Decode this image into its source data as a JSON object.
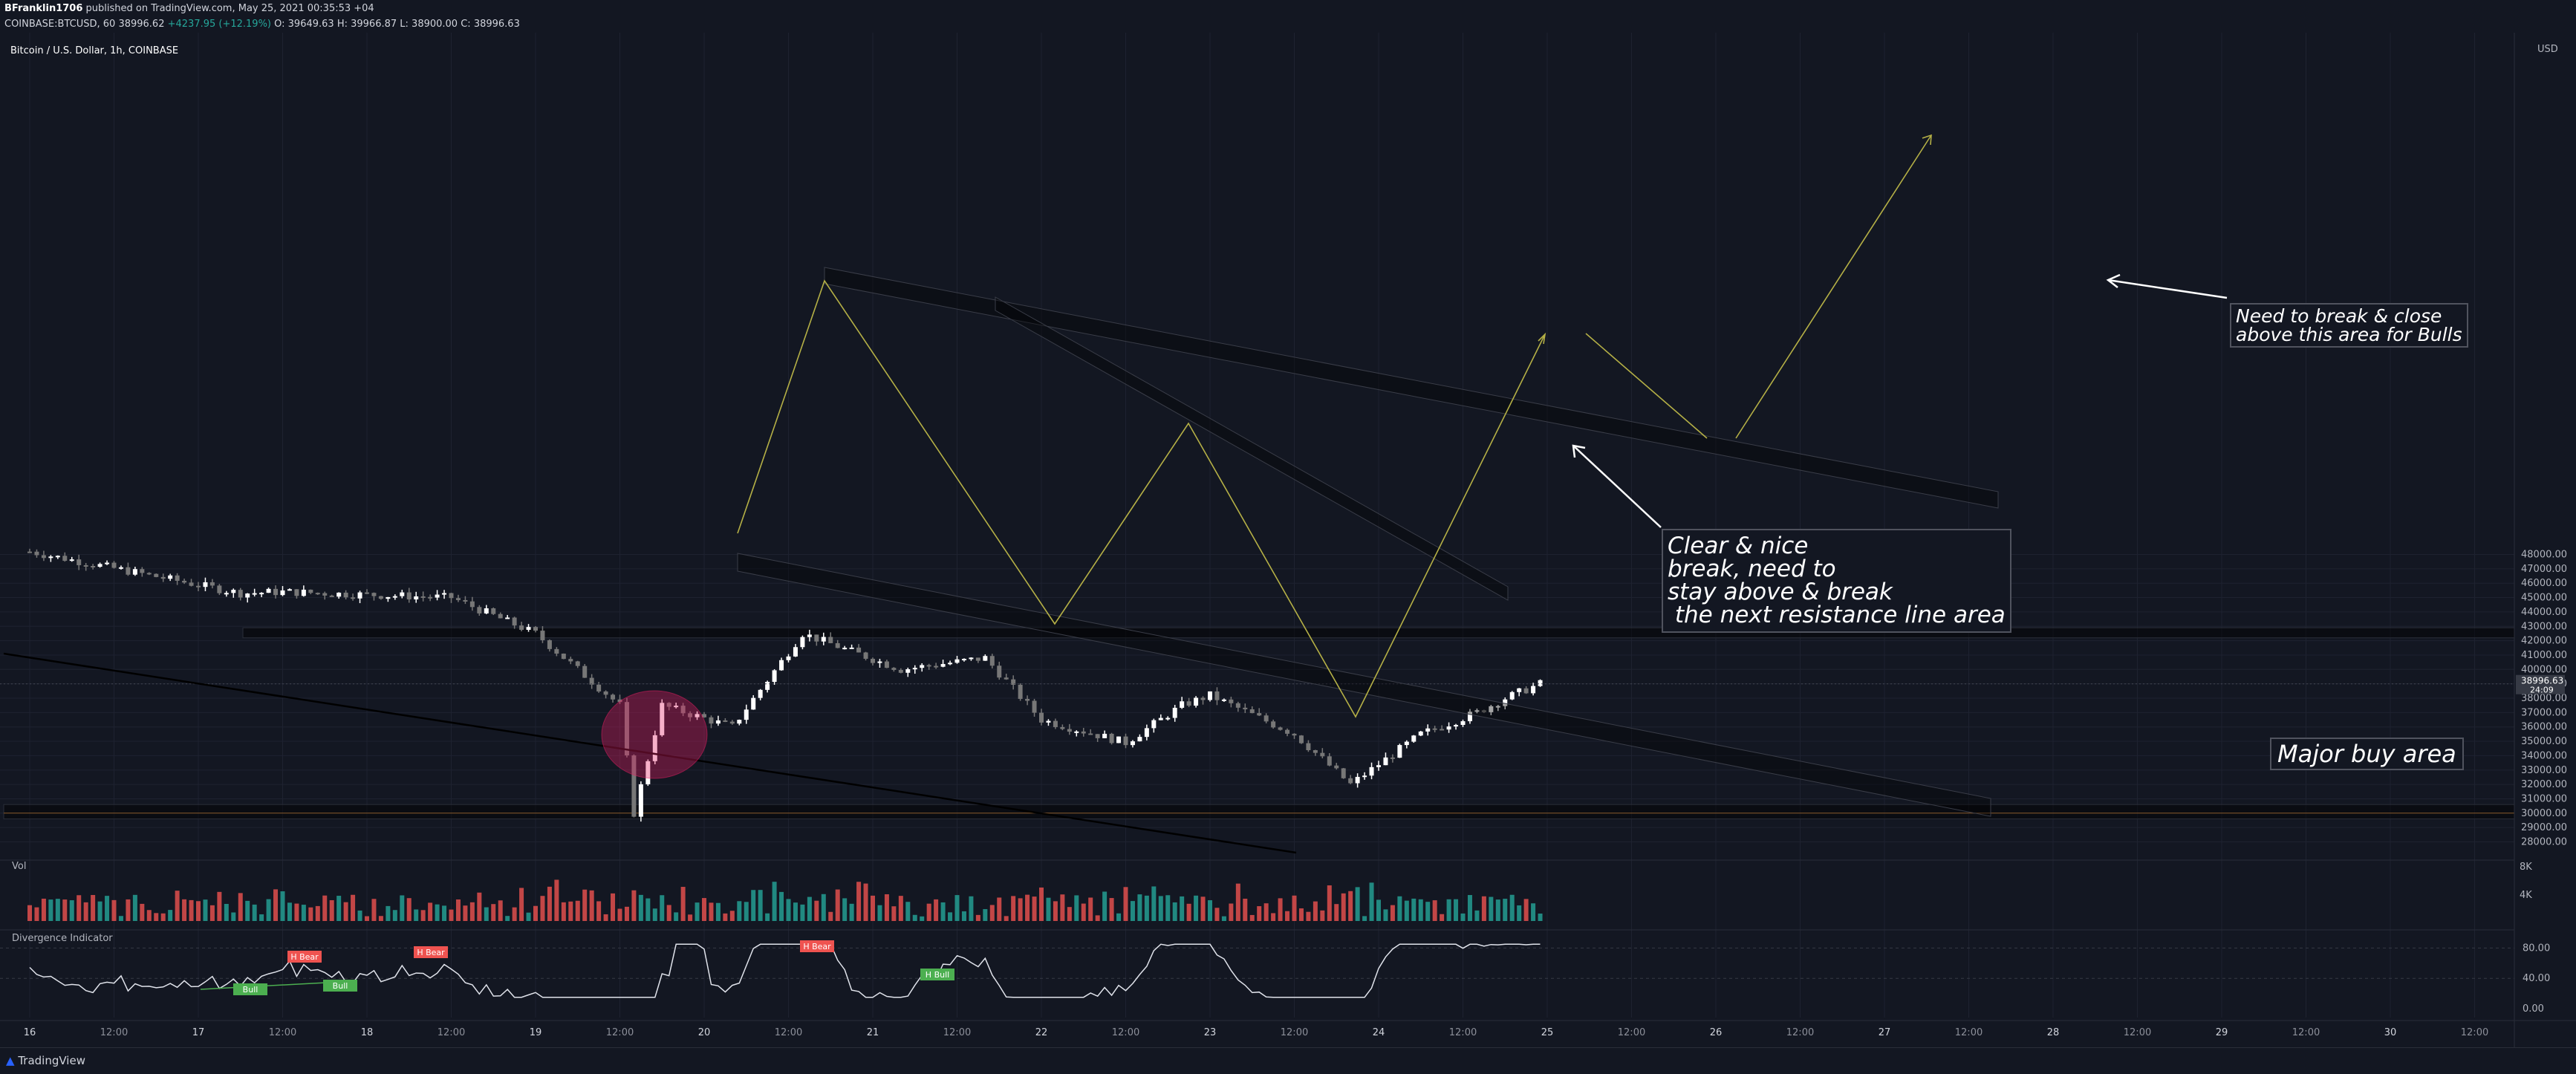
{
  "header": {
    "author": "BFranklin1706",
    "publish_info": " published on TradingView.com, May 25, 2021 00:35:53 +04",
    "symbol": "COINBASE:BTCUSD, 60",
    "last": "38996.62",
    "change": "+4237.95 (+12.19%)",
    "open": "O: 39649.63",
    "high": "H: 39966.87",
    "low": "L: 38900.00",
    "close": "C: 38996.63"
  },
  "legend_title": "Bitcoin / U.S. Dollar, 1h, COINBASE",
  "price_axis": {
    "unit": "USD",
    "ticks": [
      "48000.00",
      "47000.00",
      "46000.00",
      "45000.00",
      "44000.00",
      "43000.00",
      "42000.00",
      "41000.00",
      "40000.00",
      "39000.00",
      "38000.00",
      "37000.00",
      "36000.00",
      "35000.00",
      "34000.00",
      "33000.00",
      "32000.00",
      "31000.00",
      "30000.00",
      "29000.00",
      "28000.00"
    ],
    "current_price": "38996.63",
    "countdown": "24:09"
  },
  "volume": {
    "label": "Vol",
    "ticks": [
      "8K",
      "4K"
    ]
  },
  "indicator": {
    "label": "Divergence Indicator",
    "ticks": [
      "80.00",
      "40.00",
      "0.00"
    ],
    "labels": [
      "H Bear",
      "H Bear",
      "H Bear",
      "Bull",
      "Bull",
      "H Bull"
    ]
  },
  "time_axis": [
    "16",
    "12:00",
    "17",
    "12:00",
    "18",
    "12:00",
    "19",
    "12:00",
    "20",
    "12:00",
    "21",
    "12:00",
    "22",
    "12:00",
    "23",
    "12:00",
    "24",
    "12:00",
    "25",
    "12:00",
    "26",
    "12:00",
    "27",
    "12:00",
    "28",
    "12:00",
    "29",
    "12:00",
    "30",
    "12:00"
  ],
  "annotations": {
    "resistance_note": "Need to break & close\nabove this area for Bulls",
    "break_note": "Clear & nice\nbreak, need to\nstay above & break\n the next resistance line area",
    "buy_note": "Major buy area"
  },
  "colors": {
    "background": "#131722",
    "up": "#ffffff",
    "down": "#777777",
    "vol_up": "#26a69a",
    "vol_down": "#ef5350",
    "trend": "#b5b046",
    "accent_price": "#363a45"
  },
  "footer": {
    "brand": "TradingView"
  },
  "chart_data": {
    "type": "candlestick",
    "title": "Bitcoin / U.S. Dollar, 1h, COINBASE",
    "x_range": [
      "May 16",
      "May 25"
    ],
    "ylim": [
      27500,
      48600
    ],
    "key_points": [
      {
        "time": "May 16 00:00",
        "price": 48200
      },
      {
        "time": "May 17 06:00",
        "price": 45300
      },
      {
        "time": "May 17 12:00",
        "price": 45400
      },
      {
        "time": "May 18 12:00",
        "price": 45000
      },
      {
        "time": "May 19 00:00",
        "price": 42500
      },
      {
        "time": "May 19 12:00",
        "price": 37500
      },
      {
        "time": "May 19 14:00",
        "price": 30000
      },
      {
        "time": "May 19 18:00",
        "price": 37500
      },
      {
        "time": "May 20 04:00",
        "price": 36000
      },
      {
        "time": "May 20 14:00",
        "price": 42500
      },
      {
        "time": "May 21 04:00",
        "price": 40000
      },
      {
        "time": "May 21 16:00",
        "price": 40800
      },
      {
        "time": "May 22 00:00",
        "price": 36500
      },
      {
        "time": "May 22 12:00",
        "price": 34900
      },
      {
        "time": "May 22 20:00",
        "price": 37500
      },
      {
        "time": "May 23 00:00",
        "price": 38200
      },
      {
        "time": "May 23 12:00",
        "price": 35500
      },
      {
        "time": "May 23 20:00",
        "price": 32000
      },
      {
        "time": "May 24 06:00",
        "price": 35500
      },
      {
        "time": "May 24 14:00",
        "price": 37000
      },
      {
        "time": "May 24 18:00",
        "price": 38000
      },
      {
        "time": "May 24 23:00",
        "price": 39000
      }
    ]
  }
}
